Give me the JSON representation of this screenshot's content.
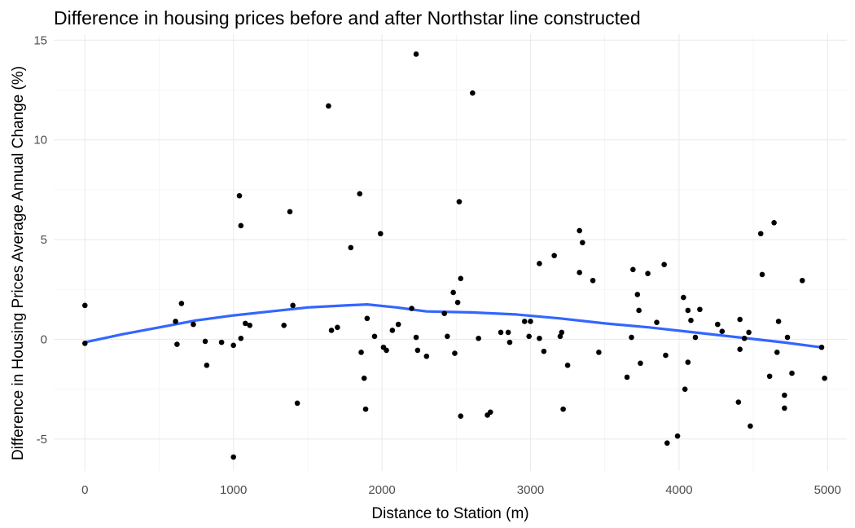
{
  "chart_data": {
    "type": "scatter",
    "title": "Difference in housing prices before and after Northstar line constructed",
    "xlabel": "Distance to Station (m)",
    "ylabel": "Difference in Housing Prices Average Annual Change (%)",
    "xlim": [
      -210,
      5130
    ],
    "ylim": [
      -6.6,
      15.3
    ],
    "x_ticks": [
      0,
      1000,
      2000,
      3000,
      4000,
      5000
    ],
    "x_tick_labels": [
      "0",
      "1000",
      "2000",
      "3000",
      "4000",
      "5000"
    ],
    "y_ticks": [
      -5,
      0,
      5,
      10,
      15
    ],
    "y_tick_labels": [
      "-5",
      "0",
      "5",
      "10",
      "15"
    ],
    "grid": true,
    "colors": {
      "points": "#000000",
      "smooth": "#3366ff",
      "grid": "#ebebeb"
    },
    "points": [
      [
        0,
        1.7
      ],
      [
        0,
        -0.2
      ],
      [
        610,
        0.9
      ],
      [
        620,
        -0.25
      ],
      [
        650,
        1.8
      ],
      [
        730,
        0.75
      ],
      [
        810,
        -0.1
      ],
      [
        820,
        -1.3
      ],
      [
        920,
        -0.15
      ],
      [
        1000,
        -0.3
      ],
      [
        1000,
        -5.9
      ],
      [
        1040,
        7.2
      ],
      [
        1050,
        5.7
      ],
      [
        1050,
        0.05
      ],
      [
        1080,
        0.8
      ],
      [
        1110,
        0.7
      ],
      [
        1340,
        0.7
      ],
      [
        1380,
        6.4
      ],
      [
        1400,
        1.7
      ],
      [
        1430,
        -3.2
      ],
      [
        1640,
        11.7
      ],
      [
        1660,
        0.45
      ],
      [
        1700,
        0.6
      ],
      [
        1790,
        4.6
      ],
      [
        1850,
        7.3
      ],
      [
        1860,
        -0.65
      ],
      [
        1880,
        -1.95
      ],
      [
        1890,
        -3.5
      ],
      [
        1900,
        1.05
      ],
      [
        1950,
        0.15
      ],
      [
        1990,
        5.3
      ],
      [
        2010,
        -0.4
      ],
      [
        2030,
        -0.55
      ],
      [
        2070,
        0.45
      ],
      [
        2110,
        0.75
      ],
      [
        2200,
        1.55
      ],
      [
        2230,
        14.3
      ],
      [
        2230,
        0.1
      ],
      [
        2240,
        -0.55
      ],
      [
        2300,
        -0.85
      ],
      [
        2420,
        1.3
      ],
      [
        2440,
        0.15
      ],
      [
        2480,
        2.35
      ],
      [
        2490,
        -0.7
      ],
      [
        2510,
        1.85
      ],
      [
        2520,
        6.9
      ],
      [
        2530,
        3.05
      ],
      [
        2530,
        -3.85
      ],
      [
        2610,
        12.35
      ],
      [
        2650,
        0.05
      ],
      [
        2710,
        -3.8
      ],
      [
        2730,
        -3.65
      ],
      [
        2800,
        0.35
      ],
      [
        2850,
        0.35
      ],
      [
        2860,
        -0.15
      ],
      [
        2960,
        0.9
      ],
      [
        2990,
        0.15
      ],
      [
        3000,
        0.9
      ],
      [
        3060,
        3.8
      ],
      [
        3060,
        0.05
      ],
      [
        3090,
        -0.6
      ],
      [
        3160,
        4.2
      ],
      [
        3200,
        0.15
      ],
      [
        3210,
        0.35
      ],
      [
        3220,
        -3.5
      ],
      [
        3250,
        -1.3
      ],
      [
        3330,
        3.35
      ],
      [
        3330,
        5.45
      ],
      [
        3350,
        4.85
      ],
      [
        3420,
        2.95
      ],
      [
        3460,
        -0.65
      ],
      [
        3650,
        -1.9
      ],
      [
        3680,
        0.1
      ],
      [
        3690,
        3.5
      ],
      [
        3720,
        2.25
      ],
      [
        3730,
        1.45
      ],
      [
        3740,
        -1.2
      ],
      [
        3790,
        3.3
      ],
      [
        3850,
        0.85
      ],
      [
        3900,
        3.75
      ],
      [
        3910,
        -0.8
      ],
      [
        3920,
        -5.2
      ],
      [
        3990,
        -4.85
      ],
      [
        4030,
        2.1
      ],
      [
        4040,
        -2.5
      ],
      [
        4060,
        -1.15
      ],
      [
        4060,
        1.45
      ],
      [
        4080,
        0.95
      ],
      [
        4110,
        0.1
      ],
      [
        4140,
        1.5
      ],
      [
        4260,
        0.75
      ],
      [
        4290,
        0.4
      ],
      [
        4400,
        -3.15
      ],
      [
        4410,
        1.0
      ],
      [
        4410,
        -0.5
      ],
      [
        4440,
        0.05
      ],
      [
        4470,
        0.35
      ],
      [
        4480,
        -4.35
      ],
      [
        4550,
        5.3
      ],
      [
        4560,
        3.25
      ],
      [
        4610,
        -1.85
      ],
      [
        4640,
        5.85
      ],
      [
        4660,
        -0.65
      ],
      [
        4670,
        0.9
      ],
      [
        4710,
        -2.8
      ],
      [
        4710,
        -3.45
      ],
      [
        4730,
        0.1
      ],
      [
        4760,
        -1.7
      ],
      [
        4830,
        2.95
      ],
      [
        4960,
        -0.4
      ],
      [
        4980,
        -1.95
      ]
    ],
    "smooth_line": [
      [
        0,
        -0.15
      ],
      [
        250,
        0.25
      ],
      [
        500,
        0.6
      ],
      [
        750,
        0.95
      ],
      [
        1000,
        1.2
      ],
      [
        1250,
        1.4
      ],
      [
        1500,
        1.6
      ],
      [
        1750,
        1.7
      ],
      [
        1900,
        1.75
      ],
      [
        2100,
        1.6
      ],
      [
        2300,
        1.4
      ],
      [
        2600,
        1.35
      ],
      [
        2900,
        1.25
      ],
      [
        3200,
        1.05
      ],
      [
        3500,
        0.8
      ],
      [
        3800,
        0.6
      ],
      [
        4100,
        0.35
      ],
      [
        4400,
        0.1
      ],
      [
        4700,
        -0.15
      ],
      [
        4960,
        -0.4
      ]
    ]
  }
}
